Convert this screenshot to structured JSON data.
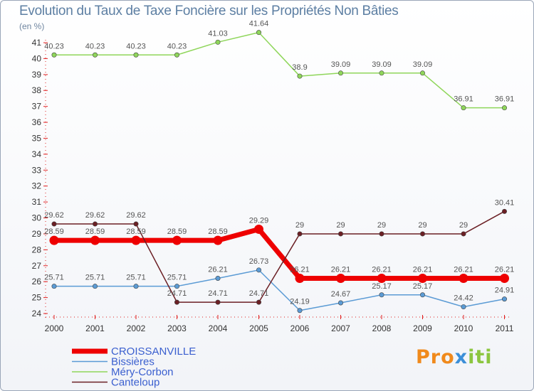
{
  "title": "Evolution du Taux de Taxe Foncière sur les Propriétés Non Bâties",
  "subtitle": "(en %)",
  "logo": {
    "part1": "Pro",
    "part2": "x",
    "part3": "iti"
  },
  "colors": {
    "CROISSANVILLE": "#ee0000",
    "Bissières": "#5b9bd5",
    "Méry-Corbon": "#8fd65a",
    "Canteloup": "#6b1f24"
  },
  "chart_data": {
    "type": "line",
    "x": [
      "2000",
      "2001",
      "2002",
      "2003",
      "2004",
      "2005",
      "2006",
      "2007",
      "2008",
      "2009",
      "2010",
      "2011"
    ],
    "ylim": [
      24,
      41
    ],
    "yticks": [
      24,
      25,
      26,
      27,
      28,
      29,
      30,
      31,
      32,
      33,
      34,
      35,
      36,
      37,
      38,
      39,
      40,
      41
    ],
    "grid": false,
    "legend": "bottom-left",
    "series": [
      {
        "name": "CROISSANVILLE",
        "values": [
          28.59,
          28.59,
          28.59,
          28.59,
          28.59,
          29.29,
          26.21,
          26.21,
          26.21,
          26.21,
          26.21,
          26.21
        ],
        "labels": [
          "28.59",
          "28.59",
          "28.59",
          "28.59",
          "28.59",
          "29.29",
          "26.21",
          "26.21",
          "26.21",
          "26.21",
          "26.21",
          "26.21"
        ]
      },
      {
        "name": "Bissières",
        "values": [
          25.71,
          25.71,
          25.71,
          25.71,
          26.21,
          26.73,
          24.19,
          24.67,
          25.17,
          25.17,
          24.42,
          24.91
        ],
        "labels": [
          "25.71",
          "25.71",
          "25.71",
          "25.71",
          "26.21",
          "26.73",
          "24.19",
          "24.67",
          "25.17",
          "25.17",
          "24.42",
          "24.91"
        ]
      },
      {
        "name": "Méry-Corbon",
        "values": [
          40.23,
          40.23,
          40.23,
          40.23,
          41.03,
          41.64,
          38.9,
          39.09,
          39.09,
          39.09,
          36.91,
          36.91
        ],
        "labels": [
          "40.23",
          "40.23",
          "40.23",
          "40.23",
          "41.03",
          "41.64",
          "38.9",
          "39.09",
          "39.09",
          "39.09",
          "36.91",
          "36.91"
        ]
      },
      {
        "name": "Canteloup",
        "values": [
          29.62,
          29.62,
          29.62,
          24.71,
          24.71,
          24.71,
          29,
          29,
          29,
          29,
          29,
          30.41
        ],
        "labels": [
          "29.62",
          "29.62",
          "29.62",
          "24.71",
          "24.71",
          "24.71",
          "29",
          "29",
          "29",
          "29",
          "29",
          "30.41"
        ]
      }
    ]
  }
}
